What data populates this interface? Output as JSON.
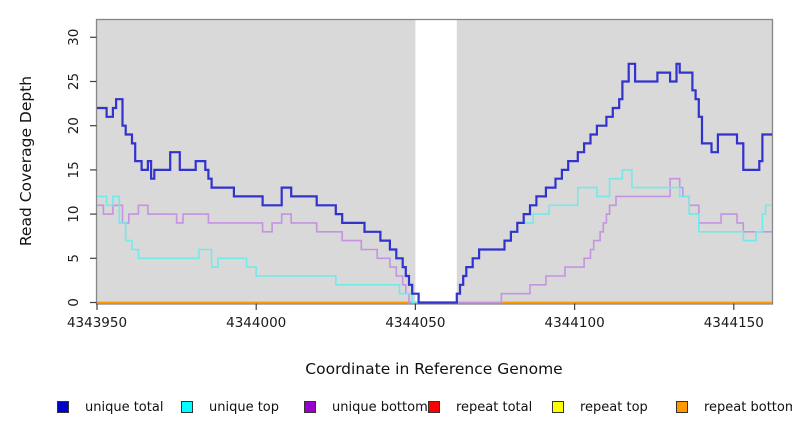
{
  "chart_data": {
    "type": "line",
    "subtype": "step-coverage",
    "title": "",
    "xlabel": "Coordinate in Reference Genome",
    "ylabel": "Read Coverage Depth",
    "xlim": [
      4343950,
      4344162
    ],
    "ylim": [
      0,
      32
    ],
    "x_ticks": [
      4343950,
      4344000,
      4344050,
      4344100,
      4344150
    ],
    "y_ticks": [
      0,
      5,
      10,
      15,
      20,
      25,
      30
    ],
    "grid": false,
    "plot_background": "#d9d9d9",
    "border_color": "#878787",
    "tick_color": "#404040",
    "text_color": "#1a1a1a",
    "masked_region": {
      "x_start": 4344050,
      "x_end": 4344063,
      "color": "#ffffff"
    },
    "series": [
      {
        "name": "repeat total",
        "color": "#ff0000",
        "width": 1.6,
        "points": [
          [
            4343950,
            0
          ],
          [
            4344162,
            0
          ]
        ]
      },
      {
        "name": "repeat top",
        "color": "#ffff00",
        "width": 1.6,
        "points": [
          [
            4343950,
            0
          ],
          [
            4344162,
            0
          ]
        ]
      },
      {
        "name": "repeat bottom",
        "color": "#ff9900",
        "width": 1.6,
        "points": [
          [
            4343950,
            0
          ],
          [
            4344162,
            0
          ]
        ]
      },
      {
        "name": "unique bottom",
        "color": "#c493e2",
        "width": 1.6,
        "points": [
          [
            4343950,
            11
          ],
          [
            4343952,
            10
          ],
          [
            4343955,
            11
          ],
          [
            4343958,
            9
          ],
          [
            4343960,
            10
          ],
          [
            4343963,
            11
          ],
          [
            4343966,
            10
          ],
          [
            4343975,
            9
          ],
          [
            4343977,
            10
          ],
          [
            4343985,
            9
          ],
          [
            4344002,
            8
          ],
          [
            4344005,
            9
          ],
          [
            4344008,
            10
          ],
          [
            4344011,
            9
          ],
          [
            4344019,
            8
          ],
          [
            4344027,
            7
          ],
          [
            4344033,
            6
          ],
          [
            4344038,
            5
          ],
          [
            4344042,
            4
          ],
          [
            4344044,
            3
          ],
          [
            4344046,
            2
          ],
          [
            4344047,
            1
          ],
          [
            4344048,
            0
          ],
          [
            4344077,
            1
          ],
          [
            4344086,
            2
          ],
          [
            4344091,
            3
          ],
          [
            4344097,
            4
          ],
          [
            4344103,
            5
          ],
          [
            4344105,
            6
          ],
          [
            4344106,
            7
          ],
          [
            4344108,
            8
          ],
          [
            4344109,
            9
          ],
          [
            4344110,
            10
          ],
          [
            4344111,
            11
          ],
          [
            4344113,
            12
          ],
          [
            4344130,
            14
          ],
          [
            4344133,
            13
          ],
          [
            4344134,
            12
          ],
          [
            4344136,
            11
          ],
          [
            4344139,
            9
          ],
          [
            4344146,
            10
          ],
          [
            4344151,
            9
          ],
          [
            4344153,
            8
          ],
          [
            4344162,
            8
          ]
        ]
      },
      {
        "name": "unique top",
        "color": "#73e9e9",
        "width": 1.6,
        "points": [
          [
            4343950,
            12
          ],
          [
            4343953,
            11
          ],
          [
            4343955,
            12
          ],
          [
            4343957,
            9
          ],
          [
            4343959,
            7
          ],
          [
            4343961,
            6
          ],
          [
            4343963,
            5
          ],
          [
            4343982,
            6
          ],
          [
            4343986,
            4
          ],
          [
            4343988,
            5
          ],
          [
            4343997,
            4
          ],
          [
            4344000,
            3
          ],
          [
            4344025,
            2
          ],
          [
            4344045,
            1
          ],
          [
            4344049,
            0
          ],
          [
            4344063,
            1
          ],
          [
            4344064,
            2
          ],
          [
            4344065,
            3
          ],
          [
            4344066,
            4
          ],
          [
            4344068,
            5
          ],
          [
            4344070,
            6
          ],
          [
            4344078,
            7
          ],
          [
            4344080,
            8
          ],
          [
            4344082,
            9
          ],
          [
            4344087,
            10
          ],
          [
            4344092,
            11
          ],
          [
            4344101,
            13
          ],
          [
            4344107,
            12
          ],
          [
            4344111,
            14
          ],
          [
            4344115,
            15
          ],
          [
            4344118,
            13
          ],
          [
            4344133,
            12
          ],
          [
            4344136,
            10
          ],
          [
            4344139,
            8
          ],
          [
            4344153,
            7
          ],
          [
            4344157,
            8
          ],
          [
            4344159,
            10
          ],
          [
            4344160,
            11
          ],
          [
            4344162,
            11
          ]
        ]
      },
      {
        "name": "unique total",
        "color": "#3232cd",
        "width": 2.2,
        "points": [
          [
            4343950,
            22
          ],
          [
            4343953,
            21
          ],
          [
            4343955,
            22
          ],
          [
            4343956,
            23
          ],
          [
            4343958,
            20
          ],
          [
            4343959,
            19
          ],
          [
            4343961,
            18
          ],
          [
            4343962,
            16
          ],
          [
            4343964,
            15
          ],
          [
            4343966,
            16
          ],
          [
            4343967,
            14
          ],
          [
            4343968,
            15
          ],
          [
            4343973,
            17
          ],
          [
            4343976,
            15
          ],
          [
            4343981,
            16
          ],
          [
            4343984,
            15
          ],
          [
            4343985,
            14
          ],
          [
            4343986,
            13
          ],
          [
            4343993,
            12
          ],
          [
            4344002,
            11
          ],
          [
            4344008,
            13
          ],
          [
            4344011,
            12
          ],
          [
            4344019,
            11
          ],
          [
            4344025,
            10
          ],
          [
            4344027,
            9
          ],
          [
            4344034,
            8
          ],
          [
            4344039,
            7
          ],
          [
            4344042,
            6
          ],
          [
            4344044,
            5
          ],
          [
            4344046,
            4
          ],
          [
            4344047,
            3
          ],
          [
            4344048,
            2
          ],
          [
            4344049,
            1
          ],
          [
            4344051,
            0
          ],
          [
            4344063,
            1
          ],
          [
            4344064,
            2
          ],
          [
            4344065,
            3
          ],
          [
            4344066,
            4
          ],
          [
            4344068,
            5
          ],
          [
            4344070,
            6
          ],
          [
            4344078,
            7
          ],
          [
            4344080,
            8
          ],
          [
            4344082,
            9
          ],
          [
            4344084,
            10
          ],
          [
            4344086,
            11
          ],
          [
            4344088,
            12
          ],
          [
            4344091,
            13
          ],
          [
            4344094,
            14
          ],
          [
            4344096,
            15
          ],
          [
            4344098,
            16
          ],
          [
            4344101,
            17
          ],
          [
            4344103,
            18
          ],
          [
            4344105,
            19
          ],
          [
            4344107,
            20
          ],
          [
            4344110,
            21
          ],
          [
            4344112,
            22
          ],
          [
            4344114,
            23
          ],
          [
            4344115,
            25
          ],
          [
            4344117,
            27
          ],
          [
            4344119,
            25
          ],
          [
            4344126,
            26
          ],
          [
            4344130,
            25
          ],
          [
            4344132,
            27
          ],
          [
            4344133,
            26
          ],
          [
            4344137,
            24
          ],
          [
            4344138,
            23
          ],
          [
            4344139,
            21
          ],
          [
            4344140,
            18
          ],
          [
            4344143,
            17
          ],
          [
            4344145,
            19
          ],
          [
            4344151,
            18
          ],
          [
            4344153,
            15
          ],
          [
            4344158,
            16
          ],
          [
            4344159,
            19
          ],
          [
            4344162,
            19
          ]
        ]
      }
    ],
    "legend": {
      "position": "bottom",
      "items": [
        {
          "label": "unique total",
          "color": "#0000cc"
        },
        {
          "label": "unique top",
          "color": "#00ffff"
        },
        {
          "label": "unique bottom",
          "color": "#9900cc"
        },
        {
          "label": "repeat total",
          "color": "#ff0000"
        },
        {
          "label": "repeat top",
          "color": "#ffff00"
        },
        {
          "label": "repeat bottom",
          "color": "#ff9900"
        }
      ]
    }
  }
}
